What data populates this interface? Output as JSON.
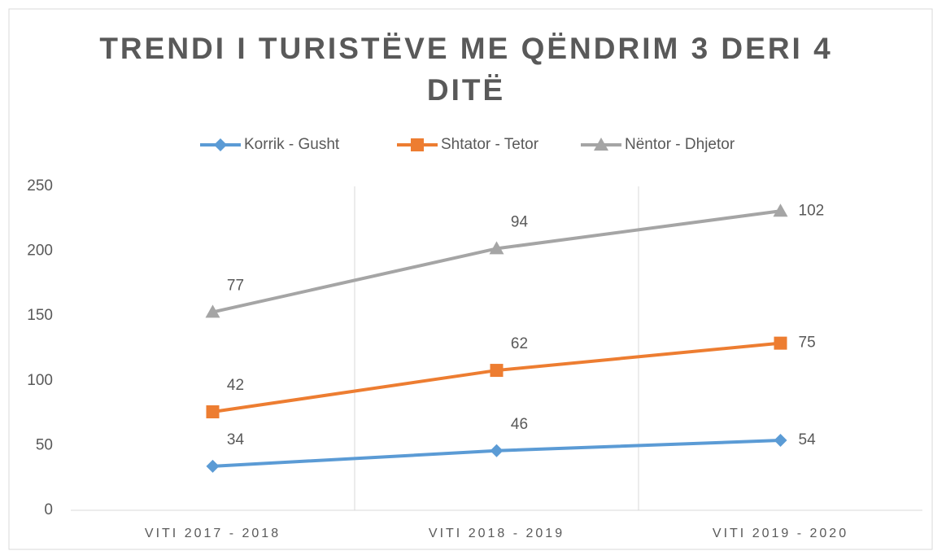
{
  "chart_data": {
    "type": "line",
    "stacked": true,
    "title": "TRENDI I TURISTËVE ME QËNDRIM 3 DERI 4 DITË",
    "categories": [
      "VITI 2017 - 2018",
      "VITI 2018 - 2019",
      "VITI 2019 - 2020"
    ],
    "series": [
      {
        "name": "Korrik - Gusht",
        "color": "#5b9bd5",
        "marker": "diamond",
        "values": [
          34,
          46,
          54
        ]
      },
      {
        "name": "Shtator - Tetor",
        "color": "#ed7d31",
        "marker": "square",
        "values": [
          42,
          62,
          75
        ]
      },
      {
        "name": "Nëntor - Dhjetor",
        "color": "#a5a5a5",
        "marker": "triangle",
        "values": [
          77,
          94,
          102
        ]
      }
    ],
    "ylim": [
      0,
      250
    ],
    "yticks": [
      0,
      50,
      100,
      150,
      200,
      250
    ],
    "legend": "top"
  }
}
